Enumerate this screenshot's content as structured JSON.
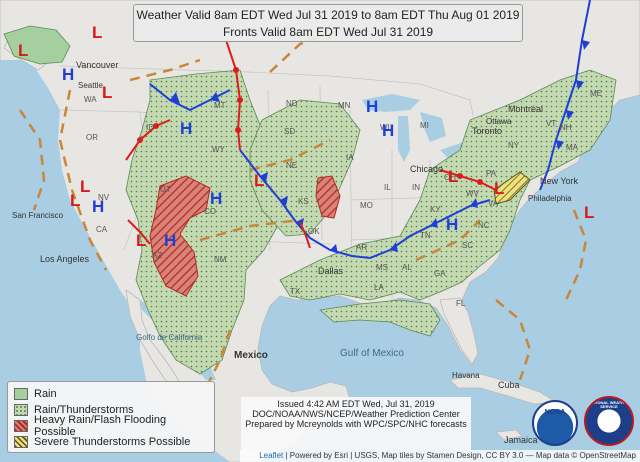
{
  "title": {
    "line1": "Weather Valid 8am EDT Wed Jul 31 2019 to 8am EDT Thu Aug 01 2019",
    "line2": "Fronts Valid 8am EDT Wed Jul 31 2019"
  },
  "legend": {
    "items": [
      {
        "label": "Rain",
        "color": "#a6cfa0"
      },
      {
        "label": "Rain/Thunderstorms",
        "color": "#c8dcb8"
      },
      {
        "label": "Heavy Rain/Flash Flooding Possible",
        "color": "#c0504d"
      },
      {
        "label": "Severe Thunderstorms Possible",
        "color": "#e6d64a"
      }
    ]
  },
  "issued": {
    "line1": "Issued 4:42 AM EDT Wed, Jul 31, 2019",
    "line2": "DOC/NOAA/NWS/NCEP/Weather Prediction Center",
    "line3": "Prepared by Mcreynolds with WPC/SPC/NHC forecasts"
  },
  "attribution": {
    "leaflet": "Leaflet",
    "text": " | Powered by Esri | USGS, Map tiles by Stamen Design, CC BY 3.0 — Map data © OpenStreetMap"
  },
  "logos": {
    "noaa": "NOAA",
    "nws": "NATIONAL WEATHER SERVICE"
  },
  "colors": {
    "ocean": "#a9cde3",
    "land": "#e7e6e2",
    "cold_front": "#1f3fd6",
    "warm_front": "#e01b1b",
    "trough": "#c8873a",
    "high": "#1f3fd6",
    "low": "#d61b1b"
  },
  "pressure_centers": {
    "high": "H",
    "low": "L"
  },
  "places": [
    {
      "name": "Vancouver"
    },
    {
      "name": "Seattle"
    },
    {
      "name": "San Francisco"
    },
    {
      "name": "Los Angeles"
    },
    {
      "name": "Dallas"
    },
    {
      "name": "Chicago"
    },
    {
      "name": "Toronto"
    },
    {
      "name": "Montréal"
    },
    {
      "name": "Ottawa"
    },
    {
      "name": "New York"
    },
    {
      "name": "Philadelphia"
    },
    {
      "name": "Mexico"
    },
    {
      "name": "Gulf of Mexico"
    },
    {
      "name": "Golfo de California"
    },
    {
      "name": "Havana"
    },
    {
      "name": "Cuba"
    },
    {
      "name": "Jamaica"
    }
  ],
  "states": [
    "WA",
    "OR",
    "ID",
    "MT",
    "WY",
    "NV",
    "UT",
    "CO",
    "CA",
    "AZ",
    "NM",
    "ND",
    "SD",
    "NE",
    "KS",
    "OK",
    "TX",
    "MN",
    "IA",
    "MO",
    "AR",
    "LA",
    "WI",
    "IL",
    "MI",
    "IN",
    "OH",
    "KY",
    "TN",
    "MS",
    "AL",
    "GA",
    "FL",
    "SC",
    "NC",
    "VA",
    "WV",
    "PA",
    "NY",
    "ME",
    "VT",
    "NH",
    "MA"
  ]
}
